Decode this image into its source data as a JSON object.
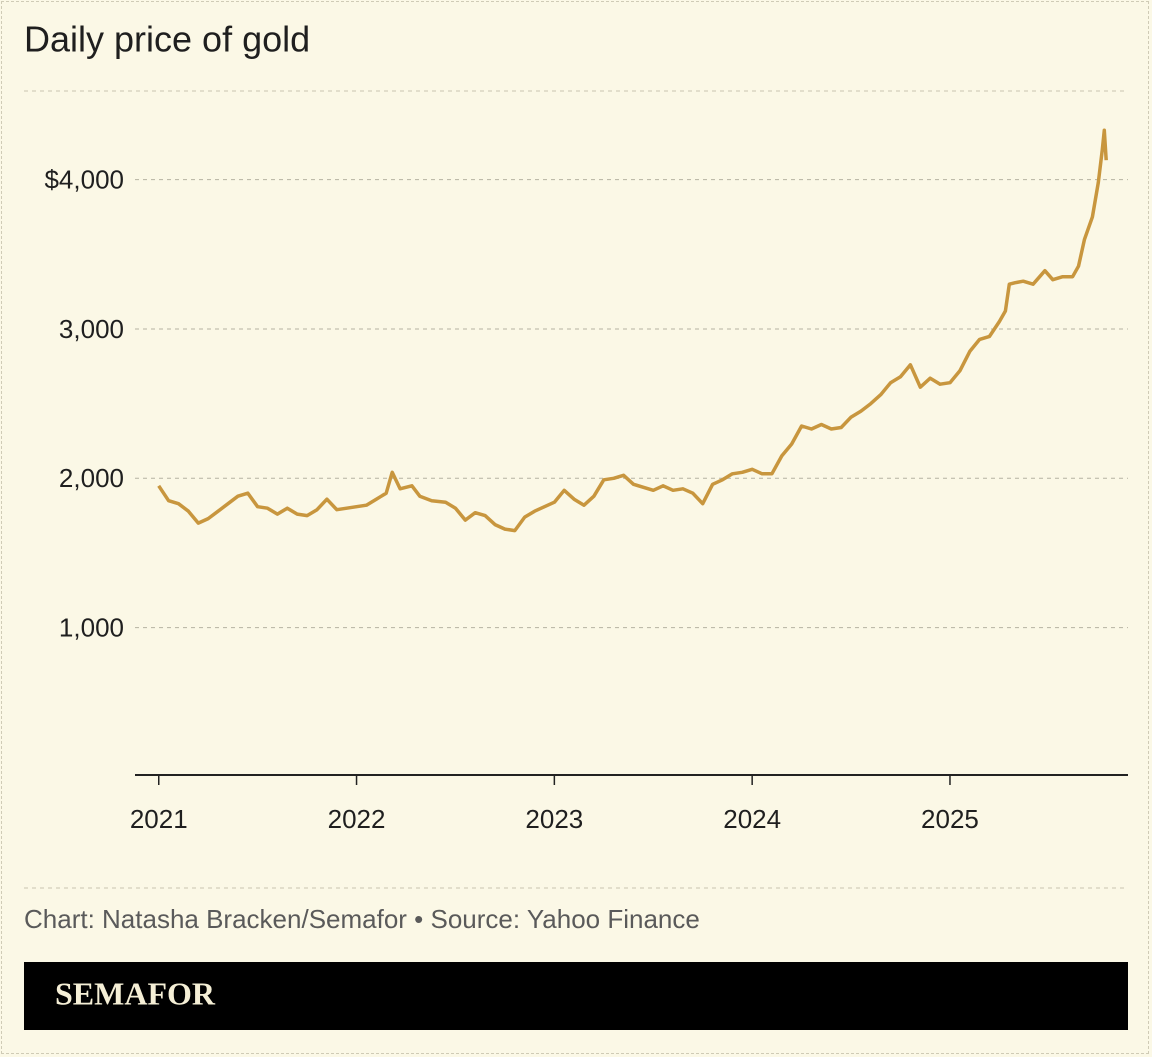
{
  "chart_data": {
    "type": "line",
    "title": "Daily price of gold",
    "source": "Chart: Natasha Bracken/Semafor • Source: Yahoo Finance",
    "brand": "SEMAFOR",
    "color": "#c8963e",
    "xlim": [
      2020.88,
      2025.9
    ],
    "xticks": [
      2021,
      2022,
      2023,
      2024,
      2025
    ],
    "ylim": [
      0,
      4600
    ],
    "yticks": [
      {
        "value": 1000,
        "label": "1,000"
      },
      {
        "value": 2000,
        "label": "2,000"
      },
      {
        "value": 3000,
        "label": "3,000"
      },
      {
        "value": 4000,
        "label": "$4,000"
      }
    ],
    "grid": true,
    "x": [
      2021.0,
      2021.05,
      2021.1,
      2021.15,
      2021.2,
      2021.25,
      2021.3,
      2021.35,
      2021.4,
      2021.45,
      2021.5,
      2021.55,
      2021.6,
      2021.65,
      2021.7,
      2021.75,
      2021.8,
      2021.85,
      2021.9,
      2021.95,
      2022.0,
      2022.05,
      2022.1,
      2022.15,
      2022.18,
      2022.22,
      2022.28,
      2022.32,
      2022.38,
      2022.45,
      2022.5,
      2022.55,
      2022.6,
      2022.65,
      2022.7,
      2022.75,
      2022.8,
      2022.85,
      2022.9,
      2022.95,
      2023.0,
      2023.05,
      2023.1,
      2023.15,
      2023.2,
      2023.25,
      2023.3,
      2023.35,
      2023.4,
      2023.45,
      2023.5,
      2023.55,
      2023.6,
      2023.65,
      2023.7,
      2023.75,
      2023.8,
      2023.85,
      2023.9,
      2023.95,
      2024.0,
      2024.05,
      2024.1,
      2024.15,
      2024.2,
      2024.25,
      2024.3,
      2024.35,
      2024.4,
      2024.45,
      2024.5,
      2024.55,
      2024.6,
      2024.65,
      2024.7,
      2024.75,
      2024.8,
      2024.85,
      2024.9,
      2024.95,
      2025.0,
      2025.05,
      2025.1,
      2025.15,
      2025.2,
      2025.25,
      2025.28,
      2025.3,
      2025.33,
      2025.37,
      2025.42,
      2025.48,
      2025.52,
      2025.57,
      2025.62,
      2025.65,
      2025.68,
      2025.72,
      2025.75,
      2025.77,
      2025.78,
      2025.79
    ],
    "values": [
      1950,
      1850,
      1830,
      1780,
      1700,
      1730,
      1780,
      1830,
      1880,
      1900,
      1810,
      1800,
      1760,
      1800,
      1760,
      1750,
      1790,
      1860,
      1790,
      1800,
      1810,
      1820,
      1860,
      1900,
      2040,
      1930,
      1950,
      1880,
      1850,
      1840,
      1800,
      1720,
      1770,
      1750,
      1690,
      1660,
      1650,
      1740,
      1780,
      1810,
      1840,
      1920,
      1860,
      1820,
      1880,
      1990,
      2000,
      2020,
      1960,
      1940,
      1920,
      1950,
      1920,
      1930,
      1900,
      1830,
      1960,
      1990,
      2030,
      2040,
      2060,
      2030,
      2030,
      2150,
      2230,
      2350,
      2330,
      2360,
      2330,
      2340,
      2410,
      2450,
      2500,
      2560,
      2640,
      2680,
      2760,
      2610,
      2670,
      2630,
      2640,
      2720,
      2850,
      2930,
      2950,
      3050,
      3120,
      3300,
      3310,
      3320,
      3300,
      3390,
      3330,
      3350,
      3350,
      3420,
      3600,
      3750,
      3980,
      4200,
      4330,
      4130
    ]
  }
}
